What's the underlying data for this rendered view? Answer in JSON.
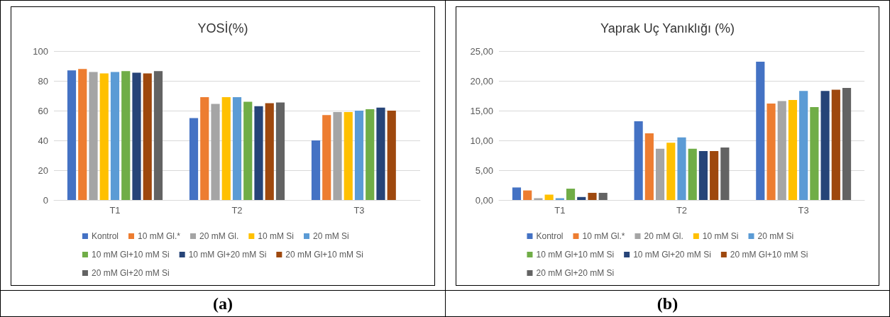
{
  "chart_data": [
    {
      "type": "bar",
      "title": "YOSİ(%)",
      "categories": [
        "T1",
        "T2",
        "T3"
      ],
      "ylim": [
        0,
        100
      ],
      "yticks": [
        0,
        20,
        40,
        60,
        80,
        100
      ],
      "grid": "y",
      "legend": "bottom",
      "annotations": [
        "(a)"
      ],
      "series": [
        {
          "name": "Kontrol",
          "color": "#4472c4",
          "values": [
            87,
            55,
            40
          ]
        },
        {
          "name": "10 mM Gl.*",
          "color": "#ed7d31",
          "values": [
            88,
            69,
            57
          ]
        },
        {
          "name": "20 mM Gl.",
          "color": "#a5a5a5",
          "values": [
            86,
            64.5,
            59
          ]
        },
        {
          "name": "10 mM Si",
          "color": "#ffc000",
          "values": [
            85,
            69,
            59
          ]
        },
        {
          "name": "20 mM Si",
          "color": "#5b9bd5",
          "values": [
            86,
            69,
            60
          ]
        },
        {
          "name": "10 mM Gl+10 mM Si",
          "color": "#70ad47",
          "values": [
            86.5,
            66,
            61
          ]
        },
        {
          "name": "10 mM Gl+20 mM Si",
          "color": "#264478",
          "values": [
            85.5,
            63,
            62
          ]
        },
        {
          "name": "20 mM Gl+10 mM Si",
          "color": "#9e480e",
          "values": [
            85,
            65,
            60
          ]
        },
        {
          "name": "20 mM Gl+20 mM Si",
          "color": "#636363",
          "values": [
            86.5,
            65.5,
            null
          ]
        }
      ]
    },
    {
      "type": "bar",
      "title": "Yaprak Uç Yanıklığı (%)",
      "categories": [
        "T1",
        "T2",
        "T3"
      ],
      "ylim": [
        0,
        25
      ],
      "yticks": [
        {
          "value": 0,
          "label": "0,00"
        },
        {
          "value": 5,
          "label": "5,00"
        },
        {
          "value": 10,
          "label": "10,00"
        },
        {
          "value": 15,
          "label": "15,00"
        },
        {
          "value": 20,
          "label": "20,00"
        },
        {
          "value": 25,
          "label": "25,00"
        }
      ],
      "grid": "y",
      "legend": "bottom",
      "annotations": [
        "(b)"
      ],
      "series": [
        {
          "name": "Kontrol",
          "color": "#4472c4",
          "values": [
            2.1,
            13.2,
            23.2
          ]
        },
        {
          "name": "10 mM Gl.*",
          "color": "#ed7d31",
          "values": [
            1.6,
            11.2,
            16.2
          ]
        },
        {
          "name": "20 mM Gl.",
          "color": "#a5a5a5",
          "values": [
            0.3,
            8.6,
            16.6
          ]
        },
        {
          "name": "10 mM Si",
          "color": "#ffc000",
          "values": [
            0.9,
            9.6,
            16.8
          ]
        },
        {
          "name": "20 mM Si",
          "color": "#5b9bd5",
          "values": [
            0.3,
            10.5,
            18.3
          ]
        },
        {
          "name": "10 mM Gl+10 mM Si",
          "color": "#70ad47",
          "values": [
            1.9,
            8.6,
            15.6
          ]
        },
        {
          "name": "10 mM Gl+20 mM Si",
          "color": "#264478",
          "values": [
            0.5,
            8.2,
            18.3
          ]
        },
        {
          "name": "20 mM Gl+10 mM Si",
          "color": "#9e480e",
          "values": [
            1.2,
            8.2,
            18.5
          ]
        },
        {
          "name": "20 mM Gl+20 mM Si",
          "color": "#636363",
          "values": [
            1.2,
            8.8,
            18.8
          ]
        }
      ]
    }
  ]
}
